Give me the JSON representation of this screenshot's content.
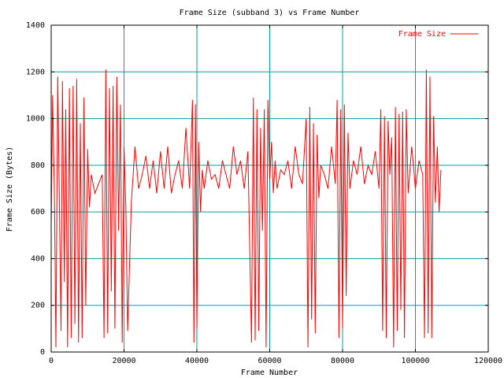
{
  "chart_data": {
    "type": "line",
    "title": "Frame Size (subband 3) vs Frame Number",
    "xlabel": "Frame Number",
    "ylabel": "Frame Size (Bytes)",
    "xlim": [
      0,
      120000
    ],
    "ylim": [
      0,
      1400
    ],
    "x_ticks": [
      0,
      20000,
      40000,
      60000,
      80000,
      100000,
      120000
    ],
    "x_tick_labels": [
      "0",
      "20000",
      "40000",
      "60000",
      "80000",
      "100000",
      "120000"
    ],
    "y_ticks": [
      0,
      200,
      400,
      600,
      800,
      1000,
      1200,
      1400
    ],
    "y_tick_labels": [
      "0",
      "200",
      "400",
      "600",
      "800",
      "1000",
      "1200",
      "1400"
    ],
    "grid": true,
    "grid_color": "#00a0a0",
    "legend_position": "top-right",
    "series": [
      {
        "name": "Frame Size",
        "color": "#ff0000",
        "x_range": [
          0,
          107000
        ],
        "x": [
          0,
          400,
          900,
          1300,
          1800,
          2200,
          2700,
          3100,
          3600,
          4000,
          4500,
          5000,
          5500,
          6000,
          6500,
          7000,
          7500,
          8000,
          8500,
          9000,
          9500,
          10000,
          10500,
          11000,
          12000,
          13000,
          14000,
          14500,
          15000,
          15500,
          16000,
          16500,
          17000,
          17500,
          18000,
          18500,
          19000,
          19500,
          20000,
          20500,
          21000,
          22000,
          23000,
          24000,
          25000,
          26000,
          27000,
          28000,
          29000,
          30000,
          31000,
          32000,
          33000,
          34000,
          35000,
          36000,
          37000,
          38000,
          38800,
          39200,
          39600,
          40000,
          40500,
          41000,
          41500,
          42000,
          43000,
          44000,
          45000,
          46000,
          47000,
          48000,
          49000,
          50000,
          51000,
          52000,
          53000,
          54000,
          55000,
          55500,
          56000,
          56500,
          57000,
          57500,
          58000,
          58500,
          59000,
          59500,
          60000,
          60500,
          61000,
          61500,
          62000,
          63000,
          64000,
          65000,
          66000,
          67000,
          68000,
          69000,
          70000,
          70500,
          71000,
          71500,
          72000,
          72500,
          73000,
          73500,
          74000,
          75000,
          76000,
          77000,
          78000,
          78500,
          79000,
          79500,
          80000,
          80500,
          81000,
          81500,
          82000,
          83000,
          84000,
          85000,
          86000,
          87000,
          88000,
          89000,
          90000,
          90500,
          91000,
          91500,
          92000,
          92500,
          93000,
          93500,
          94000,
          94500,
          95000,
          95500,
          96000,
          96500,
          97000,
          97500,
          98000,
          99000,
          100000,
          101000,
          102000,
          102500,
          103000,
          103500,
          104000,
          104500,
          105000,
          105500,
          106000,
          106500,
          107000
        ],
        "values": [
          540,
          1100,
          650,
          20,
          1180,
          700,
          90,
          1160,
          300,
          1040,
          20,
          1130,
          60,
          1140,
          120,
          1170,
          40,
          980,
          60,
          1090,
          200,
          870,
          620,
          760,
          680,
          720,
          760,
          60,
          1210,
          80,
          1130,
          260,
          1140,
          100,
          1180,
          520,
          1060,
          40,
          880,
          620,
          90,
          640,
          880,
          700,
          760,
          840,
          700,
          820,
          680,
          860,
          700,
          880,
          680,
          760,
          820,
          700,
          960,
          700,
          1080,
          40,
          1060,
          100,
          900,
          600,
          780,
          700,
          820,
          740,
          760,
          700,
          820,
          760,
          700,
          880,
          760,
          820,
          700,
          860,
          40,
          1090,
          50,
          1040,
          90,
          960,
          520,
          1040,
          20,
          1080,
          740,
          900,
          680,
          820,
          700,
          780,
          760,
          820,
          700,
          880,
          760,
          720,
          1000,
          20,
          1050,
          140,
          980,
          80,
          930,
          660,
          800,
          760,
          700,
          880,
          720,
          1080,
          60,
          1040,
          100,
          1060,
          240,
          940,
          700,
          820,
          760,
          880,
          720,
          800,
          760,
          860,
          700,
          1040,
          90,
          1010,
          60,
          990,
          760,
          920,
          20,
          1050,
          90,
          1020,
          180,
          1030,
          60,
          1040,
          680,
          880,
          700,
          820,
          760,
          60,
          1210,
          80,
          1180,
          60,
          1010,
          640,
          880,
          600,
          780
        ]
      }
    ]
  }
}
